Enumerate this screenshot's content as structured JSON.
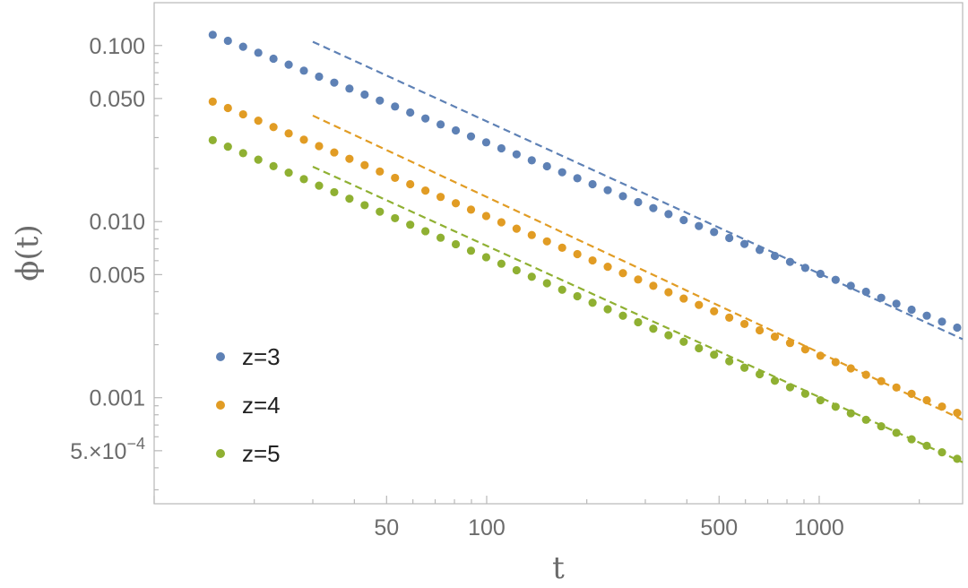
{
  "chart_data": {
    "type": "scatter",
    "title": "",
    "xlabel": "t",
    "ylabel": "ϕ(t)",
    "xscale": "log",
    "yscale": "log",
    "xlim": [
      10,
      2700
    ],
    "ylim": [
      0.00025,
      0.175
    ],
    "x_ticks": [
      {
        "value": 50,
        "label": "50"
      },
      {
        "value": 100,
        "label": "100"
      },
      {
        "value": 500,
        "label": "500"
      },
      {
        "value": 1000,
        "label": "1000"
      }
    ],
    "y_ticks": [
      {
        "value": 0.1,
        "label": "0.100"
      },
      {
        "value": 0.05,
        "label": "0.050"
      },
      {
        "value": 0.01,
        "label": "0.010"
      },
      {
        "value": 0.005,
        "label": "0.005"
      },
      {
        "value": 0.001,
        "label": "0.001"
      },
      {
        "value": 0.0005,
        "label_base": "5.×10",
        "label_exp": "−4"
      }
    ],
    "grid": false,
    "legend_position": "bottom-left",
    "series": [
      {
        "name": "z=3",
        "color": "#5e81b5",
        "points": {
          "x_start": 15,
          "x_end": 2600,
          "y_start": 0.115,
          "y_end": 0.0025,
          "count": 50
        },
        "fit": {
          "x_start": 30,
          "x_end": 2700,
          "y_start": 0.105,
          "y_end": 0.00215
        }
      },
      {
        "name": "z=4",
        "color": "#e19c24",
        "points": {
          "x_start": 15,
          "x_end": 2600,
          "y_start": 0.048,
          "y_end": 0.00082,
          "count": 50
        },
        "fit": {
          "x_start": 30,
          "x_end": 2700,
          "y_start": 0.04,
          "y_end": 0.00075
        }
      },
      {
        "name": "z=5",
        "color": "#8fb032",
        "points": {
          "x_start": 15,
          "x_end": 2600,
          "y_start": 0.029,
          "y_end": 0.00045,
          "count": 50
        },
        "fit": {
          "x_start": 30,
          "x_end": 2700,
          "y_start": 0.0205,
          "y_end": 0.00043
        }
      }
    ]
  }
}
